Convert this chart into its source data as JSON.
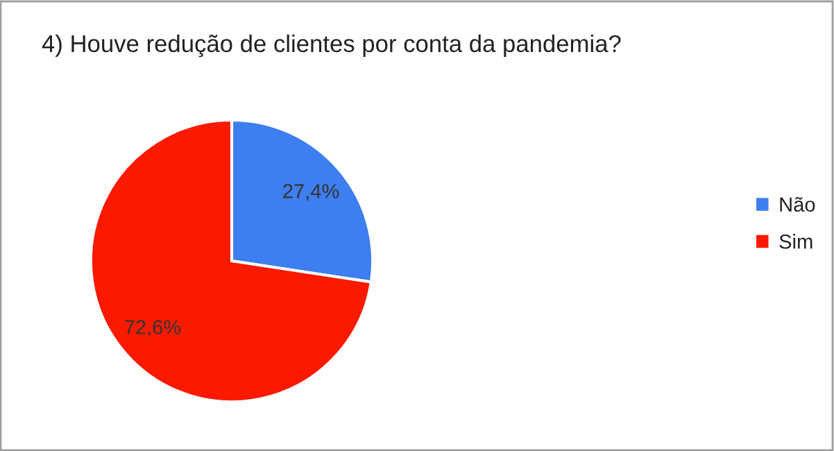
{
  "chart_data": {
    "type": "pie",
    "title": "4) Houve redução de clientes por conta da pandemia?",
    "categories": [
      "Não",
      "Sim"
    ],
    "values": [
      27.4,
      72.6
    ],
    "colors": [
      "#3d7ef0",
      "#fb1a00"
    ],
    "value_labels": [
      "27,4%",
      "72,6%"
    ],
    "legend": "right"
  }
}
